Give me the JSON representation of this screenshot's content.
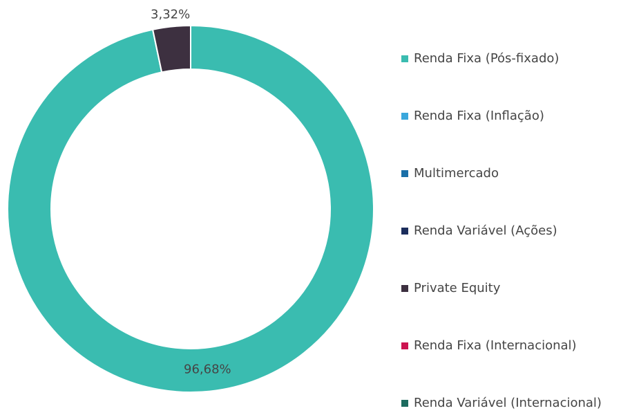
{
  "chart_data": {
    "type": "pie",
    "categories": [
      "Renda Fixa (Pós-fixado)",
      "Renda Fixa (Inflação)",
      "Multimercado",
      "Renda Variável (Ações)",
      "Private Equity",
      "Renda Fixa (Internacional)",
      "Renda Variável (Internacional)"
    ],
    "values": [
      96.68,
      0,
      0,
      0,
      3.32,
      0,
      0
    ],
    "value_labels": [
      "96,68%",
      null,
      null,
      null,
      "3,32%",
      null,
      null
    ],
    "colors": [
      "#3abcb0",
      "#3aa7dc",
      "#1a6fa8",
      "#1b2d5c",
      "#3d3040",
      "#cc1450",
      "#1c6b5f"
    ],
    "legend": "right"
  }
}
